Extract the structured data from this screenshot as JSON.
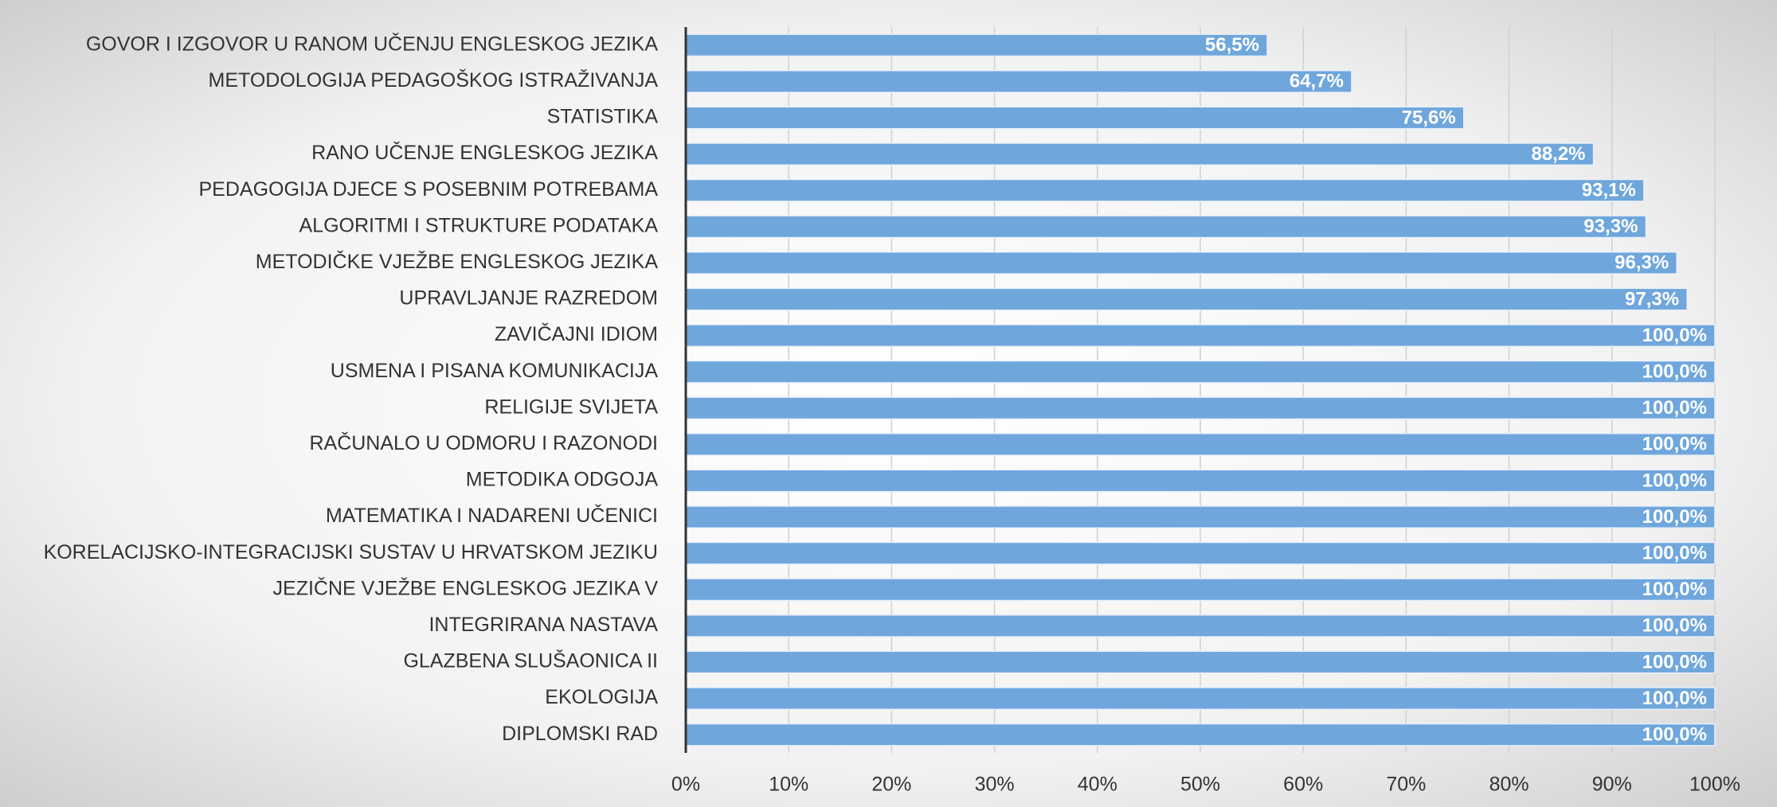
{
  "chart_data": {
    "type": "bar",
    "orientation": "horizontal",
    "categories": [
      "GOVOR I IZGOVOR U RANOM UČENJU ENGLESKOG JEZIKA",
      "METODOLOGIJA PEDAGOŠKOG ISTRAŽIVANJA",
      "STATISTIKA",
      "RANO UČENJE ENGLESKOG JEZIKA",
      "PEDAGOGIJA DJECE S POSEBNIM POTREBAMA",
      "ALGORITMI I STRUKTURE PODATAKA",
      "METODIČKE VJEŽBE ENGLESKOG JEZIKA",
      "UPRAVLJANJE RAZREDOM",
      "ZAVIČAJNI IDIOM",
      "USMENA I PISANA KOMUNIKACIJA",
      "RELIGIJE SVIJETA",
      "RAČUNALO U ODMORU I RAZONODI",
      "METODIKA ODGOJA",
      "MATEMATIKA I NADARENI UČENICI",
      "KORELACIJSKO-INTEGRACIJSKI SUSTAV U HRVATSKOM JEZIKU",
      "JEZIČNE VJEŽBE ENGLESKOG JEZIKA V",
      "INTEGRIRANA NASTAVA",
      "GLAZBENA SLUŠAONICA II",
      "EKOLOGIJA",
      "DIPLOMSKI RAD"
    ],
    "values": [
      56.5,
      64.7,
      75.6,
      88.2,
      93.1,
      93.3,
      96.3,
      97.3,
      100,
      100,
      100,
      100,
      100,
      100,
      100,
      100,
      100,
      100,
      100,
      100
    ],
    "value_labels": [
      "56,5%",
      "64,7%",
      "75,6%",
      "88,2%",
      "93,1%",
      "93,3%",
      "96,3%",
      "97,3%",
      "100,0%",
      "100,0%",
      "100,0%",
      "100,0%",
      "100,0%",
      "100,0%",
      "100,0%",
      "100,0%",
      "100,0%",
      "100,0%",
      "100,0%",
      "100,0%"
    ],
    "color": "#6fa6dc",
    "xlim": [
      0,
      100
    ],
    "xticks": [
      {
        "value": 0,
        "label": "0%"
      },
      {
        "value": 10,
        "label": "10%"
      },
      {
        "value": 20,
        "label": "20%"
      },
      {
        "value": 30,
        "label": "30%"
      },
      {
        "value": 40,
        "label": "40%"
      },
      {
        "value": 50,
        "label": "50%"
      },
      {
        "value": 60,
        "label": "60%"
      },
      {
        "value": 70,
        "label": "70%"
      },
      {
        "value": 80,
        "label": "80%"
      },
      {
        "value": 90,
        "label": "90%"
      },
      {
        "value": 100,
        "label": "100%"
      }
    ],
    "grid": true
  }
}
